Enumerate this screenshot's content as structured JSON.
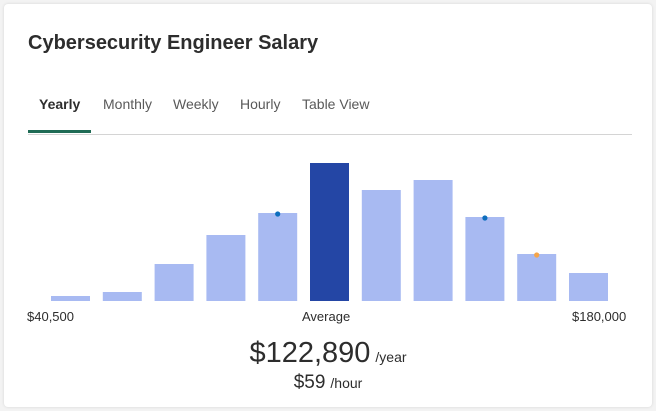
{
  "title": "Cybersecurity Engineer Salary",
  "tabs": [
    {
      "label": "Yearly",
      "active": true
    },
    {
      "label": "Monthly",
      "active": false
    },
    {
      "label": "Weekly",
      "active": false
    },
    {
      "label": "Hourly",
      "active": false
    },
    {
      "label": "Table View",
      "active": false
    }
  ],
  "chart_data": {
    "type": "bar",
    "values": [
      5,
      9,
      37,
      66,
      88,
      138,
      111,
      121,
      84,
      47,
      28
    ],
    "highlight_index": 5,
    "markers": [
      {
        "bar_index": 4,
        "color": "#0d6ebd"
      },
      {
        "bar_index": 8,
        "color": "#0d6ebd"
      },
      {
        "bar_index": 9,
        "color": "#f5a54a"
      }
    ],
    "colors": {
      "bar": "#a8baf2",
      "highlight": "#2446a5"
    }
  },
  "axis": {
    "min_label": "$40,500",
    "center_label": "Average",
    "max_label": "$180,000"
  },
  "salary": {
    "yearly_value": "$122,890",
    "yearly_unit": "/year",
    "hourly_value": "$59",
    "hourly_unit": "/hour"
  }
}
